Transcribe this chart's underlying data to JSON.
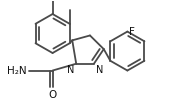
{
  "bg_color": "#ffffff",
  "line_color": "#4a4a4a",
  "text_color": "#111111",
  "line_width": 1.3,
  "font_size": 6.5,
  "fig_width": 1.78,
  "fig_height": 1.06,
  "dpi": 100,
  "xlim": [
    0,
    178
  ],
  "ylim": [
    0,
    106
  ]
}
